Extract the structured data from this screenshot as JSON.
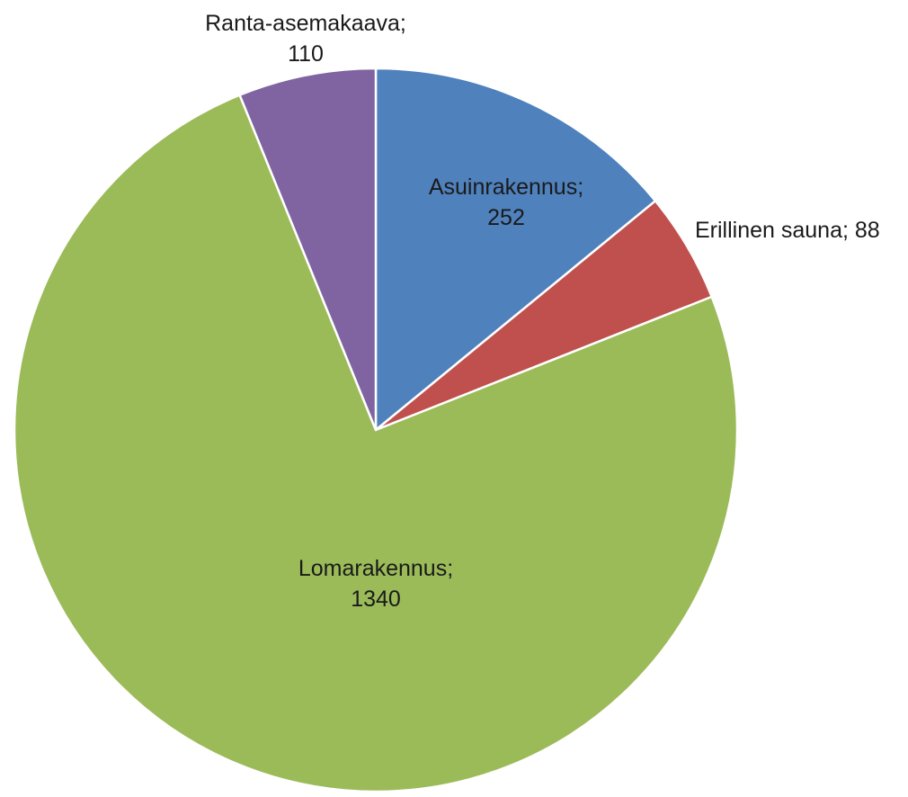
{
  "chart_data": {
    "type": "pie",
    "title": "",
    "start_angle_deg": 0,
    "direction": "clockwise",
    "slices": [
      {
        "name": "Asuinrakennus",
        "value": 252,
        "label_lines": [
          "Asuinrakennus;",
          "252"
        ],
        "label_position": "inside",
        "color": "#4F81BD"
      },
      {
        "name": "Erillinen sauna",
        "value": 88,
        "label_lines": [
          "Erillinen sauna; 88"
        ],
        "label_position": "outside",
        "color": "#C0504D"
      },
      {
        "name": "Lomarakennus",
        "value": 1340,
        "label_lines": [
          "Lomarakennus;",
          "1340"
        ],
        "label_position": "inside",
        "color": "#9BBB59"
      },
      {
        "name": "Ranta-asemakaava",
        "value": 110,
        "label_lines": [
          "Ranta-asemakaava;",
          "110"
        ],
        "label_position": "outside",
        "color": "#8064A2"
      }
    ],
    "legend": "none"
  }
}
